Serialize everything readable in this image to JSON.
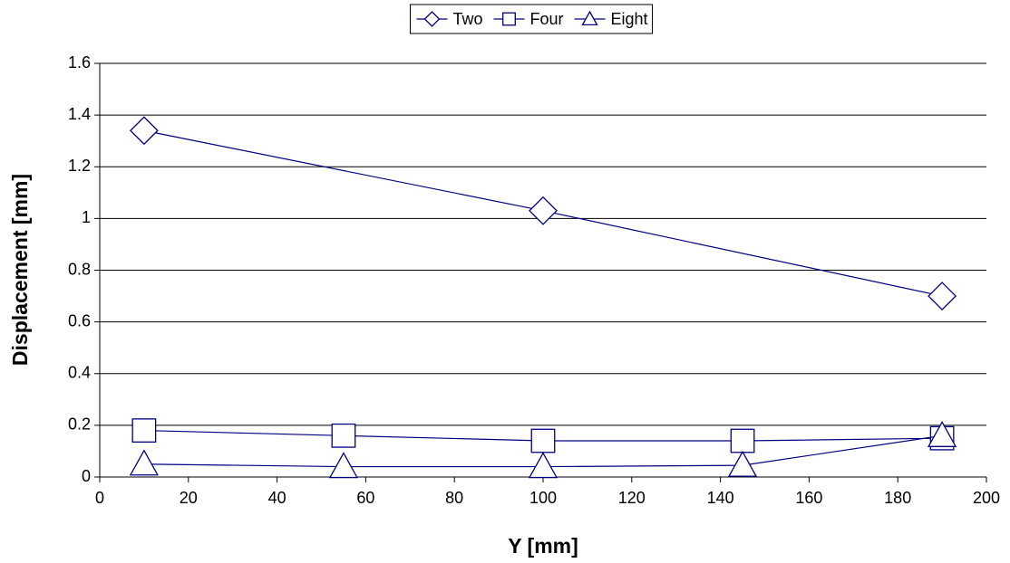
{
  "chart_data": {
    "type": "line",
    "x_label": "Y [mm]",
    "y_label": "Displacement [mm]",
    "series": [
      {
        "name": "Two",
        "color": "#000080",
        "marker": "diamond",
        "x": [
          10,
          100,
          190
        ],
        "values": [
          1.34,
          1.03,
          0.7
        ]
      },
      {
        "name": "Four",
        "color": "#000080",
        "marker": "square",
        "x": [
          10,
          55,
          100,
          145,
          190
        ],
        "values": [
          0.18,
          0.16,
          0.14,
          0.14,
          0.15
        ]
      },
      {
        "name": "Eight",
        "color": "#000080",
        "marker": "triangle",
        "x": [
          10,
          55,
          100,
          145,
          190
        ],
        "values": [
          0.05,
          0.04,
          0.04,
          0.045,
          0.16
        ]
      }
    ],
    "xlim": [
      0,
      200
    ],
    "xticks": [
      0,
      20,
      40,
      60,
      80,
      100,
      120,
      140,
      160,
      180,
      200
    ],
    "ylim": [
      0,
      1.6
    ],
    "yticks": [
      0,
      0.2,
      0.4,
      0.6,
      0.8,
      1,
      1.2,
      1.4,
      1.6
    ],
    "grid": true,
    "legend": "top"
  }
}
